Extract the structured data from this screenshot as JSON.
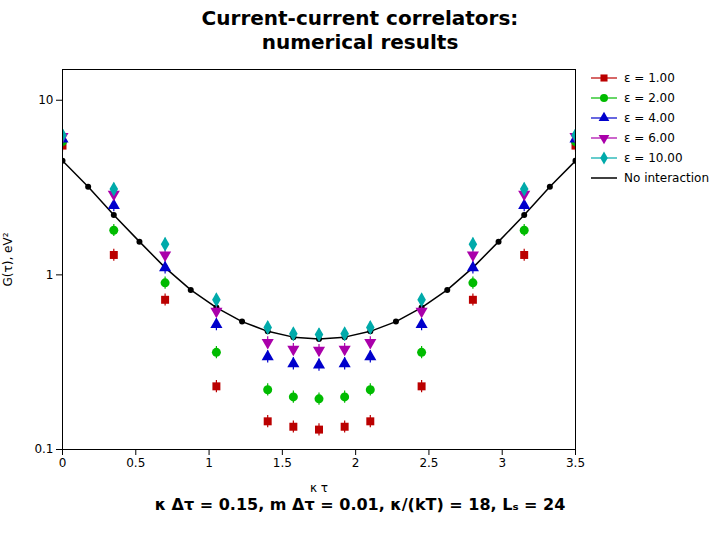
{
  "chart_data": {
    "type": "scatter",
    "title": "Current-current correlators:\nnumerical results",
    "subtitle": "κ Δτ = 0.15, m Δτ = 0.01, κ/(kT) = 18, Lₛ = 24",
    "xlabel": "κ τ",
    "ylabel": "G(τ), eV²",
    "xlim": [
      0,
      3.5
    ],
    "ylim": [
      0.1,
      15
    ],
    "xticks": [
      0,
      0.5,
      1,
      1.5,
      2,
      2.5,
      3,
      3.5
    ],
    "yticks": [
      0.1,
      1,
      10
    ],
    "log": "y",
    "grid": false,
    "legend": "upper right",
    "series": [
      {
        "name": "ε = 1.00",
        "type": "scatter",
        "color": "#bb0000",
        "marker": "square",
        "x": [
          0.0,
          0.35,
          0.7,
          1.05,
          1.4,
          1.575,
          1.75,
          1.925,
          2.1,
          2.45,
          2.8,
          3.15,
          3.5
        ],
        "values": [
          5.5,
          1.3,
          0.72,
          0.23,
          0.145,
          0.135,
          0.13,
          0.135,
          0.145,
          0.23,
          0.72,
          1.3,
          5.5
        ],
        "errors": [
          0.44,
          0.104,
          0.0576,
          0.0184,
          0.0116,
          0.0108,
          0.0104,
          0.0108,
          0.0116,
          0.0184,
          0.0576,
          0.104,
          0.44
        ]
      },
      {
        "name": "ε = 2.00",
        "type": "scatter",
        "color": "#00bb00",
        "marker": "circle",
        "x": [
          0.0,
          0.35,
          0.7,
          1.05,
          1.4,
          1.575,
          1.75,
          1.925,
          2.1,
          2.45,
          2.8,
          3.15,
          3.5
        ],
        "values": [
          5.8,
          1.8,
          0.9,
          0.36,
          0.22,
          0.2,
          0.195,
          0.2,
          0.22,
          0.36,
          0.9,
          1.8,
          5.8
        ],
        "errors": [
          0.464,
          0.144,
          0.072,
          0.0288,
          0.0176,
          0.016,
          0.0156,
          0.016,
          0.0176,
          0.0288,
          0.072,
          0.144,
          0.464
        ]
      },
      {
        "name": "ε = 4.00",
        "type": "scatter",
        "color": "#0000cc",
        "marker": "triangle-up",
        "x": [
          0.0,
          0.35,
          0.7,
          1.05,
          1.4,
          1.575,
          1.75,
          1.925,
          2.1,
          2.45,
          2.8,
          3.15,
          3.5
        ],
        "values": [
          6.0,
          2.5,
          1.1,
          0.52,
          0.34,
          0.31,
          0.305,
          0.31,
          0.34,
          0.52,
          1.1,
          2.5,
          6.0
        ],
        "errors": [
          0.48,
          0.2,
          0.088,
          0.0416,
          0.0272,
          0.0248,
          0.0244,
          0.0248,
          0.0272,
          0.0416,
          0.088,
          0.2,
          0.48
        ]
      },
      {
        "name": "ε = 6.00",
        "type": "scatter",
        "color": "#aa00aa",
        "marker": "triangle-down",
        "x": [
          0.0,
          0.35,
          0.7,
          1.05,
          1.4,
          1.575,
          1.75,
          1.925,
          2.1,
          2.45,
          2.8,
          3.15,
          3.5
        ],
        "values": [
          6.2,
          2.9,
          1.3,
          0.62,
          0.41,
          0.375,
          0.37,
          0.375,
          0.41,
          0.62,
          1.3,
          2.9,
          6.2
        ],
        "errors": [
          0.496,
          0.232,
          0.104,
          0.0496,
          0.0328,
          0.03,
          0.0296,
          0.03,
          0.0328,
          0.0496,
          0.104,
          0.232,
          0.496
        ]
      },
      {
        "name": "ε = 10.00",
        "type": "scatter",
        "color": "#00aaaa",
        "marker": "diamond",
        "x": [
          0.0,
          0.35,
          0.7,
          1.05,
          1.4,
          1.575,
          1.75,
          1.925,
          2.1,
          2.45,
          2.8,
          3.15,
          3.5
        ],
        "values": [
          6.3,
          3.1,
          1.5,
          0.72,
          0.5,
          0.46,
          0.455,
          0.46,
          0.5,
          0.72,
          1.5,
          3.1,
          6.3
        ],
        "errors": [
          0.504,
          0.248,
          0.12,
          0.0576,
          0.04,
          0.0368,
          0.0364,
          0.0368,
          0.04,
          0.0576,
          0.12,
          0.248,
          0.504
        ]
      },
      {
        "name": "No interaction",
        "type": "line",
        "color": "#000000",
        "marker": "circle",
        "line_style": "solid",
        "x": [
          0.0,
          0.175,
          0.35,
          0.525,
          0.7,
          0.875,
          1.05,
          1.225,
          1.4,
          1.575,
          1.75,
          1.925,
          2.1,
          2.275,
          2.45,
          2.625,
          2.8,
          2.975,
          3.15,
          3.325,
          3.5
        ],
        "values": [
          4.5,
          3.2,
          2.2,
          1.55,
          1.1,
          0.82,
          0.65,
          0.54,
          0.475,
          0.44,
          0.43,
          0.44,
          0.475,
          0.54,
          0.65,
          0.82,
          1.1,
          1.55,
          2.2,
          3.2,
          4.5
        ],
        "errors": [
          0.09,
          0.064,
          0.044,
          0.031,
          0.022,
          0.0164,
          0.013,
          0.0108,
          0.0095,
          0.0088,
          0.0086,
          0.0088,
          0.0095,
          0.0108,
          0.013,
          0.0164,
          0.022,
          0.031,
          0.044,
          0.064,
          0.09
        ]
      }
    ]
  }
}
